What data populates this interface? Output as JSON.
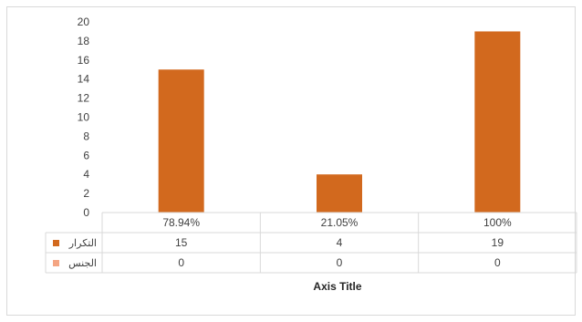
{
  "chart_data": {
    "type": "bar",
    "categories": [
      "78.94%",
      "21.05%",
      "100%"
    ],
    "series": [
      {
        "name": "التكرار",
        "values": [
          15,
          4,
          19
        ],
        "color": "#d2691e"
      },
      {
        "name": "الجنس",
        "values": [
          0,
          0,
          0
        ],
        "color": "#f4a582"
      }
    ],
    "ylim": [
      0,
      20
    ],
    "yticks": [
      0,
      2,
      4,
      6,
      8,
      10,
      12,
      14,
      16,
      18,
      20
    ],
    "xlabel": "Axis Title",
    "grid": false,
    "legend": "data-table"
  }
}
